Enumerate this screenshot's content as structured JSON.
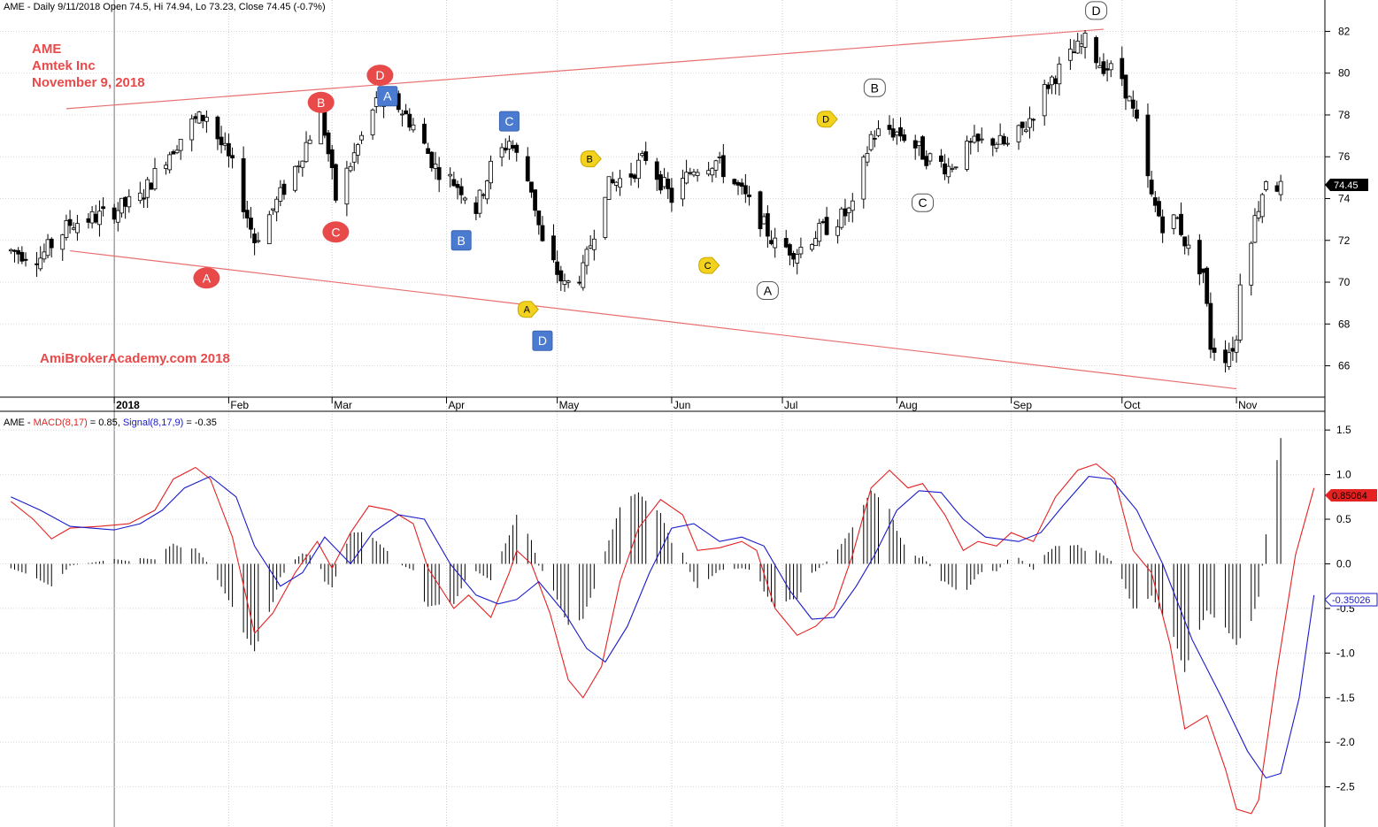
{
  "price_header": "AME - Daily 9/11/2018 Open 74.5, Hi 74.94, Lo 73.23, Close 74.45 (-0.7%)",
  "title_lines": [
    "AME",
    "Amtek Inc",
    "November 9, 2018"
  ],
  "watermark": "AmiBrokerAcademy.com  2018",
  "macd_header": {
    "symbol": "AME - ",
    "macd_label": "MACD(8,17)",
    "macd_value": " = 0.85, ",
    "signal_label": "Signal(8,17,9)",
    "signal_value": " = -0.35"
  },
  "last_price_tag": "74.45",
  "macd_tag": "0.85064",
  "signal_tag": "-0.35026",
  "colors": {
    "macd": "#e52222",
    "signal": "#1a1acc",
    "trendline": "#e87070",
    "label_red": "#e84a4a",
    "box_blue": "#4a7bd0",
    "tag_yellow": "#f2d21c",
    "bull": "#ffffff",
    "bear": "#000000"
  },
  "chart_data": [
    {
      "type": "candlestick",
      "ylim": [
        64.5,
        83.5
      ],
      "y_ticks": [
        66,
        68,
        70,
        72,
        74,
        76,
        78,
        80,
        82
      ],
      "x_ticks": [
        "2018",
        "Feb",
        "Mar",
        "Apr",
        "May",
        "Jun",
        "Jul",
        "Aug",
        "Sep",
        "Oct",
        "Nov"
      ],
      "trendlines": [
        {
          "from": [
            "2017-12-19",
            78.3
          ],
          "to": [
            "2018-09-26",
            82.1
          ]
        },
        {
          "from": [
            "2017-12-20",
            71.5
          ],
          "to": [
            "2018-11-01",
            64.9
          ]
        }
      ],
      "wave_labels": [
        {
          "text": "A",
          "style": "red-circle",
          "date": "2018-01-26",
          "price": 70.2
        },
        {
          "text": "B",
          "style": "red-circle",
          "date": "2018-02-26",
          "price": 78.6
        },
        {
          "text": "C",
          "style": "red-circle",
          "date": "2018-03-02",
          "price": 72.4
        },
        {
          "text": "D",
          "style": "red-circle",
          "date": "2018-03-14",
          "price": 79.9
        },
        {
          "text": "A",
          "style": "blue-box",
          "date": "2018-03-16",
          "price": 78.9
        },
        {
          "text": "B",
          "style": "blue-box",
          "date": "2018-04-05",
          "price": 72.0
        },
        {
          "text": "C",
          "style": "blue-box",
          "date": "2018-04-18",
          "price": 77.7
        },
        {
          "text": "D",
          "style": "blue-box",
          "date": "2018-04-27",
          "price": 67.2
        },
        {
          "text": "A",
          "style": "yellow-tag",
          "date": "2018-04-23",
          "price": 68.7
        },
        {
          "text": "B",
          "style": "yellow-tag",
          "date": "2018-05-10",
          "price": 75.9
        },
        {
          "text": "C",
          "style": "yellow-tag",
          "date": "2018-06-11",
          "price": 70.8
        },
        {
          "text": "D",
          "style": "yellow-tag",
          "date": "2018-07-13",
          "price": 77.8
        },
        {
          "text": "A",
          "style": "white-box",
          "date": "2018-06-27",
          "price": 69.6
        },
        {
          "text": "B",
          "style": "white-box",
          "date": "2018-07-26",
          "price": 79.3
        },
        {
          "text": "C",
          "style": "white-box",
          "date": "2018-08-08",
          "price": 73.8
        },
        {
          "text": "D",
          "style": "white-box",
          "date": "2018-09-24",
          "price": 83.0
        }
      ]
    },
    {
      "type": "line+histogram",
      "title": "MACD(8,17) / Signal(8,17,9)",
      "ylim": [
        -2.95,
        1.7
      ],
      "y_ticks": [
        1.5,
        1.0,
        0.5,
        0.0,
        -0.5,
        -1.0,
        -1.5,
        -2.0,
        -2.5
      ],
      "series": [
        {
          "name": "MACD(8,17)",
          "points": [
            [
              "2017-12-04",
              0.7
            ],
            [
              "2017-12-10",
              0.5
            ],
            [
              "2017-12-15",
              0.28
            ],
            [
              "2017-12-20",
              0.4
            ],
            [
              "2017-12-28",
              0.42
            ],
            [
              "2018-01-05",
              0.45
            ],
            [
              "2018-01-12",
              0.6
            ],
            [
              "2018-01-17",
              0.95
            ],
            [
              "2018-01-23",
              1.08
            ],
            [
              "2018-01-27",
              0.95
            ],
            [
              "2018-02-02",
              0.3
            ],
            [
              "2018-02-08",
              -0.78
            ],
            [
              "2018-02-13",
              -0.55
            ],
            [
              "2018-02-19",
              -0.1
            ],
            [
              "2018-02-25",
              0.25
            ],
            [
              "2018-03-01",
              -0.05
            ],
            [
              "2018-03-06",
              0.35
            ],
            [
              "2018-03-11",
              0.65
            ],
            [
              "2018-03-17",
              0.6
            ],
            [
              "2018-03-23",
              0.45
            ],
            [
              "2018-03-27",
              -0.05
            ],
            [
              "2018-04-03",
              -0.5
            ],
            [
              "2018-04-07",
              -0.35
            ],
            [
              "2018-04-13",
              -0.6
            ],
            [
              "2018-04-18",
              -0.1
            ],
            [
              "2018-04-20",
              0.15
            ],
            [
              "2018-04-24",
              0.0
            ],
            [
              "2018-04-29",
              -0.55
            ],
            [
              "2018-05-04",
              -1.3
            ],
            [
              "2018-05-08",
              -1.5
            ],
            [
              "2018-05-13",
              -1.15
            ],
            [
              "2018-05-18",
              -0.2
            ],
            [
              "2018-05-23",
              0.4
            ],
            [
              "2018-05-29",
              0.72
            ],
            [
              "2018-06-04",
              0.55
            ],
            [
              "2018-06-08",
              0.15
            ],
            [
              "2018-06-14",
              0.18
            ],
            [
              "2018-06-20",
              0.25
            ],
            [
              "2018-06-24",
              0.15
            ],
            [
              "2018-06-29",
              -0.5
            ],
            [
              "2018-07-05",
              -0.8
            ],
            [
              "2018-07-10",
              -0.7
            ],
            [
              "2018-07-15",
              -0.5
            ],
            [
              "2018-07-20",
              0.1
            ],
            [
              "2018-07-25",
              0.85
            ],
            [
              "2018-07-30",
              1.05
            ],
            [
              "2018-08-04",
              0.85
            ],
            [
              "2018-08-08",
              0.9
            ],
            [
              "2018-08-14",
              0.55
            ],
            [
              "2018-08-19",
              0.15
            ],
            [
              "2018-08-23",
              0.25
            ],
            [
              "2018-08-28",
              0.2
            ],
            [
              "2018-09-01",
              0.35
            ],
            [
              "2018-09-07",
              0.25
            ],
            [
              "2018-09-13",
              0.75
            ],
            [
              "2018-09-19",
              1.05
            ],
            [
              "2018-09-24",
              1.12
            ],
            [
              "2018-09-29",
              0.95
            ],
            [
              "2018-10-04",
              0.15
            ],
            [
              "2018-10-09",
              -0.1
            ],
            [
              "2018-10-14",
              -0.9
            ],
            [
              "2018-10-18",
              -1.85
            ],
            [
              "2018-10-24",
              -1.7
            ],
            [
              "2018-10-29",
              -2.3
            ],
            [
              "2018-11-01",
              -2.75
            ],
            [
              "2018-11-05",
              -2.8
            ],
            [
              "2018-11-07",
              -2.65
            ],
            [
              "2018-11-12",
              -1.2
            ],
            [
              "2018-11-17",
              0.1
            ],
            [
              "2018-11-22",
              0.85
            ]
          ]
        },
        {
          "name": "Signal(8,17,9)",
          "points": [
            [
              "2017-12-04",
              0.75
            ],
            [
              "2017-12-12",
              0.6
            ],
            [
              "2017-12-20",
              0.42
            ],
            [
              "2018-01-01",
              0.38
            ],
            [
              "2018-01-08",
              0.45
            ],
            [
              "2018-01-14",
              0.6
            ],
            [
              "2018-01-20",
              0.85
            ],
            [
              "2018-01-27",
              0.98
            ],
            [
              "2018-02-03",
              0.75
            ],
            [
              "2018-02-08",
              0.2
            ],
            [
              "2018-02-15",
              -0.25
            ],
            [
              "2018-02-21",
              -0.1
            ],
            [
              "2018-02-27",
              0.3
            ],
            [
              "2018-03-06",
              0.0
            ],
            [
              "2018-03-12",
              0.35
            ],
            [
              "2018-03-19",
              0.55
            ],
            [
              "2018-03-26",
              0.5
            ],
            [
              "2018-04-02",
              0.0
            ],
            [
              "2018-04-09",
              -0.35
            ],
            [
              "2018-04-15",
              -0.45
            ],
            [
              "2018-04-20",
              -0.4
            ],
            [
              "2018-04-26",
              -0.2
            ],
            [
              "2018-05-03",
              -0.55
            ],
            [
              "2018-05-09",
              -0.95
            ],
            [
              "2018-05-14",
              -1.1
            ],
            [
              "2018-05-20",
              -0.7
            ],
            [
              "2018-05-26",
              -0.1
            ],
            [
              "2018-06-01",
              0.4
            ],
            [
              "2018-06-07",
              0.45
            ],
            [
              "2018-06-14",
              0.25
            ],
            [
              "2018-06-20",
              0.3
            ],
            [
              "2018-06-26",
              0.2
            ],
            [
              "2018-07-03",
              -0.3
            ],
            [
              "2018-07-09",
              -0.62
            ],
            [
              "2018-07-15",
              -0.6
            ],
            [
              "2018-07-21",
              -0.25
            ],
            [
              "2018-07-26",
              0.1
            ],
            [
              "2018-08-01",
              0.6
            ],
            [
              "2018-08-07",
              0.82
            ],
            [
              "2018-08-13",
              0.8
            ],
            [
              "2018-08-19",
              0.5
            ],
            [
              "2018-08-25",
              0.3
            ],
            [
              "2018-09-03",
              0.25
            ],
            [
              "2018-09-09",
              0.35
            ],
            [
              "2018-09-15",
              0.65
            ],
            [
              "2018-09-22",
              0.98
            ],
            [
              "2018-09-28",
              0.95
            ],
            [
              "2018-10-05",
              0.6
            ],
            [
              "2018-10-12",
              0.0
            ],
            [
              "2018-10-20",
              -0.85
            ],
            [
              "2018-10-28",
              -1.5
            ],
            [
              "2018-11-04",
              -2.1
            ],
            [
              "2018-11-09",
              -2.4
            ],
            [
              "2018-11-13",
              -2.35
            ],
            [
              "2018-11-18",
              -1.5
            ],
            [
              "2018-11-22",
              -0.35
            ]
          ]
        }
      ],
      "histogram": "MACD minus Signal, one bar per trading day"
    }
  ]
}
